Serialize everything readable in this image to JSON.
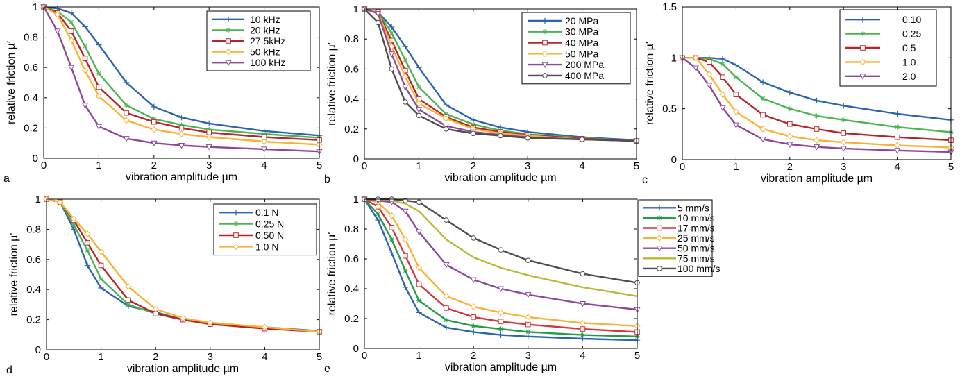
{
  "chart_data": [
    {
      "panel_label": "a",
      "type": "line",
      "title": "",
      "xlabel": "vibration amplitude µm",
      "ylabel": "relative friction  µ′",
      "xlim": [
        0,
        5
      ],
      "ylim": [
        0,
        1
      ],
      "xticks": [
        "0",
        "1",
        "2",
        "3",
        "4",
        "5"
      ],
      "yticks": [
        "0",
        "0.2",
        "0.4",
        "0.6",
        "0.8",
        "1"
      ],
      "x": [
        0,
        0.25,
        0.5,
        0.75,
        1,
        1.5,
        2,
        2.5,
        3,
        4,
        5
      ],
      "legend_position": "top-right",
      "grid": false,
      "series": [
        {
          "name": "10 kHz",
          "color": "#2a64ad",
          "marker": "plus",
          "values": [
            1.0,
            0.99,
            0.96,
            0.87,
            0.75,
            0.5,
            0.34,
            0.27,
            0.23,
            0.18,
            0.15
          ]
        },
        {
          "name": "20 kHz",
          "color": "#4bb450",
          "marker": "star",
          "values": [
            1.0,
            0.97,
            0.9,
            0.74,
            0.56,
            0.35,
            0.26,
            0.22,
            0.19,
            0.16,
            0.135
          ]
        },
        {
          "name": "27.5kHz",
          "color": "#b7252b",
          "marker": "square",
          "values": [
            1.0,
            0.96,
            0.84,
            0.66,
            0.47,
            0.3,
            0.24,
            0.2,
            0.17,
            0.14,
            0.12
          ]
        },
        {
          "name": "50 kHz",
          "color": "#f9b233",
          "marker": "diamond",
          "values": [
            1.0,
            0.95,
            0.78,
            0.58,
            0.41,
            0.25,
            0.19,
            0.16,
            0.14,
            0.11,
            0.09
          ]
        },
        {
          "name": "100 kHz",
          "color": "#8e479c",
          "marker": "triangle-down",
          "values": [
            1.0,
            0.84,
            0.6,
            0.35,
            0.21,
            0.13,
            0.1,
            0.085,
            0.075,
            0.06,
            0.045
          ]
        }
      ]
    },
    {
      "panel_label": "b",
      "type": "line",
      "title": "",
      "xlabel": "vibration amplitude µm",
      "ylabel": "relative friction  µ′",
      "xlim": [
        0,
        5
      ],
      "ylim": [
        0,
        1
      ],
      "xticks": [
        "0",
        "1",
        "2",
        "3",
        "4",
        "5"
      ],
      "yticks": [
        "0",
        "0.2",
        "0.4",
        "0.6",
        "0.8",
        "1"
      ],
      "x": [
        0,
        0.25,
        0.5,
        0.75,
        1,
        1.5,
        2,
        2.5,
        3,
        4,
        5
      ],
      "legend_position": "top-right",
      "grid": false,
      "series": [
        {
          "name": "20 MPa",
          "color": "#2a64ad",
          "marker": "plus",
          "values": [
            1.0,
            0.98,
            0.88,
            0.75,
            0.61,
            0.36,
            0.26,
            0.21,
            0.18,
            0.145,
            0.125
          ]
        },
        {
          "name": "30 MPa",
          "color": "#4bb450",
          "marker": "star",
          "values": [
            1.0,
            0.98,
            0.84,
            0.66,
            0.48,
            0.3,
            0.23,
            0.19,
            0.165,
            0.14,
            0.12
          ]
        },
        {
          "name": "40 MPa",
          "color": "#b7252b",
          "marker": "square",
          "values": [
            1.0,
            0.98,
            0.79,
            0.59,
            0.4,
            0.28,
            0.21,
            0.18,
            0.16,
            0.135,
            0.12
          ]
        },
        {
          "name": "50 MPa",
          "color": "#f9b233",
          "marker": "diamond",
          "values": [
            1.0,
            0.98,
            0.75,
            0.55,
            0.37,
            0.27,
            0.2,
            0.17,
            0.155,
            0.13,
            0.12
          ]
        },
        {
          "name": "200 MPa",
          "color": "#8e479c",
          "marker": "triangle-down",
          "values": [
            1.0,
            0.97,
            0.7,
            0.48,
            0.33,
            0.22,
            0.18,
            0.16,
            0.145,
            0.13,
            0.12
          ]
        },
        {
          "name": "400 MPa",
          "color": "#4d4d4d",
          "marker": "circle",
          "values": [
            1.0,
            0.91,
            0.6,
            0.38,
            0.29,
            0.2,
            0.17,
            0.155,
            0.14,
            0.13,
            0.12
          ]
        }
      ]
    },
    {
      "panel_label": "c",
      "type": "line",
      "title": "",
      "xlabel": "vibration amplitude µm",
      "ylabel": "relative friction  µ′",
      "xlim": [
        0,
        5
      ],
      "ylim": [
        0,
        1.5
      ],
      "xticks": [
        "0",
        "1",
        "2",
        "3",
        "4",
        "5"
      ],
      "yticks": [
        "0",
        "0.5",
        "1",
        "1.5"
      ],
      "x": [
        0,
        0.25,
        0.5,
        0.75,
        1,
        1.5,
        2,
        2.5,
        3,
        4,
        5
      ],
      "legend_position": "top-right",
      "grid": false,
      "series": [
        {
          "name": "0.10",
          "color": "#2a64ad",
          "marker": "plus",
          "values": [
            1.0,
            1.0,
            1.0,
            0.99,
            0.93,
            0.76,
            0.66,
            0.58,
            0.53,
            0.45,
            0.39
          ]
        },
        {
          "name": "0.25",
          "color": "#4bb450",
          "marker": "star",
          "values": [
            1.0,
            1.0,
            0.99,
            0.94,
            0.81,
            0.6,
            0.5,
            0.43,
            0.39,
            0.32,
            0.27
          ]
        },
        {
          "name": "0.5",
          "color": "#b7252b",
          "marker": "square",
          "values": [
            1.0,
            1.0,
            0.96,
            0.81,
            0.64,
            0.44,
            0.35,
            0.3,
            0.26,
            0.22,
            0.19
          ]
        },
        {
          "name": "1.0",
          "color": "#f9b233",
          "marker": "diamond",
          "values": [
            1.0,
            1.0,
            0.84,
            0.64,
            0.47,
            0.3,
            0.23,
            0.19,
            0.17,
            0.14,
            0.12
          ]
        },
        {
          "name": "2.0",
          "color": "#8e479c",
          "marker": "triangle-down",
          "values": [
            1.0,
            0.9,
            0.73,
            0.51,
            0.34,
            0.2,
            0.15,
            0.125,
            0.11,
            0.09,
            0.075
          ]
        }
      ]
    },
    {
      "panel_label": "d",
      "type": "line",
      "title": "",
      "xlabel": "vibration amplitude µm",
      "ylabel": "relative friction  µ′",
      "xlim": [
        0,
        5
      ],
      "ylim": [
        0,
        1
      ],
      "xticks": [
        "0",
        "1",
        "2",
        "3",
        "4",
        "5"
      ],
      "yticks": [
        "0",
        "0.2",
        "0.4",
        "0.6",
        "0.8",
        "1"
      ],
      "x": [
        0,
        0.25,
        0.5,
        0.75,
        1,
        1.5,
        2,
        2.5,
        3,
        4,
        5
      ],
      "legend_position": "top-right",
      "grid": false,
      "series": [
        {
          "name": "0.1 N",
          "color": "#2a64ad",
          "marker": "plus",
          "values": [
            1.0,
            0.98,
            0.8,
            0.56,
            0.41,
            0.29,
            0.25,
            0.2,
            0.17,
            0.15,
            0.125
          ]
        },
        {
          "name": "0.25 N",
          "color": "#4bb450",
          "marker": "star",
          "values": [
            1.0,
            0.98,
            0.83,
            0.66,
            0.47,
            0.3,
            0.24,
            0.2,
            0.17,
            0.145,
            0.12
          ]
        },
        {
          "name": "0.50 N",
          "color": "#b7252b",
          "marker": "square",
          "values": [
            1.0,
            0.98,
            0.86,
            0.71,
            0.56,
            0.33,
            0.24,
            0.2,
            0.17,
            0.14,
            0.12
          ]
        },
        {
          "name": "1.0 N",
          "color": "#f9b233",
          "marker": "diamond",
          "values": [
            1.0,
            0.98,
            0.87,
            0.77,
            0.65,
            0.42,
            0.27,
            0.21,
            0.18,
            0.15,
            0.12
          ]
        }
      ]
    },
    {
      "panel_label": "e",
      "type": "line",
      "title": "",
      "xlabel": "vibration amplitude µm",
      "ylabel": "relative friction  µ′",
      "xlim": [
        0,
        5
      ],
      "ylim": [
        0,
        1
      ],
      "xticks": [
        "0",
        "1",
        "2",
        "3",
        "4",
        "5"
      ],
      "yticks": [
        "0",
        "0.2",
        "0.4",
        "0.6",
        "0.8",
        "1"
      ],
      "x": [
        0,
        0.25,
        0.5,
        0.75,
        1,
        1.5,
        2,
        2.5,
        3,
        4,
        5
      ],
      "legend_position": "outside right",
      "grid": false,
      "series": [
        {
          "name": "5 mm/s",
          "color": "#2a64ad",
          "marker": "plus",
          "values": [
            1.0,
            0.86,
            0.64,
            0.41,
            0.24,
            0.14,
            0.11,
            0.09,
            0.08,
            0.065,
            0.055
          ]
        },
        {
          "name": "10 mm/s",
          "color": "#249b49",
          "marker": "star",
          "values": [
            1.0,
            0.9,
            0.73,
            0.52,
            0.32,
            0.19,
            0.15,
            0.13,
            0.11,
            0.09,
            0.08
          ]
        },
        {
          "name": "17 mm/s",
          "color": "#d8353a",
          "marker": "square",
          "values": [
            1.0,
            0.95,
            0.81,
            0.62,
            0.43,
            0.27,
            0.21,
            0.18,
            0.16,
            0.13,
            0.11
          ]
        },
        {
          "name": "25 mm/s",
          "color": "#f9b233",
          "marker": "diamond",
          "values": [
            1.0,
            0.98,
            0.89,
            0.73,
            0.54,
            0.35,
            0.28,
            0.24,
            0.21,
            0.17,
            0.15
          ]
        },
        {
          "name": "50 mm/s",
          "color": "#8e479c",
          "marker": "triangle-down",
          "values": [
            1.0,
            0.99,
            0.98,
            0.92,
            0.78,
            0.56,
            0.46,
            0.4,
            0.36,
            0.3,
            0.26
          ]
        },
        {
          "name": "75 mm/s",
          "color": "#b8b935",
          "marker": "none",
          "values": [
            1.0,
            1.0,
            0.99,
            0.97,
            0.92,
            0.73,
            0.61,
            0.54,
            0.49,
            0.41,
            0.35
          ]
        },
        {
          "name": "100 mm/s",
          "color": "#4d4d4d",
          "marker": "circle",
          "values": [
            1.0,
            1.0,
            1.0,
            0.99,
            0.98,
            0.86,
            0.74,
            0.66,
            0.59,
            0.5,
            0.44
          ]
        }
      ]
    }
  ]
}
